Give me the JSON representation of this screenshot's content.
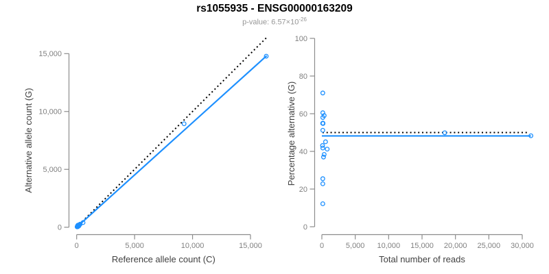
{
  "header": {
    "title": "rs1055935 - ENSG00000163209",
    "subtitle_prefix": "p-value: 6.57×10",
    "subtitle_exponent": "-26"
  },
  "colors": {
    "accent_blue": "#1E90FF",
    "dotted_black": "#000000",
    "axis_gray": "#8C8C8C",
    "tick_label_gray": "#808080",
    "axis_title_dark": "#404040",
    "subtitle_gray": "#969696"
  },
  "chart_data": [
    {
      "id": "allele-count-scatter",
      "type": "scatter",
      "xlabel": "Reference allele count (C)",
      "ylabel": "Alternative allele count (G)",
      "xlim": [
        0,
        15000
      ],
      "ylim": [
        0,
        15000
      ],
      "x_ticks": [
        0,
        5000,
        10000,
        15000
      ],
      "x_tick_labels": [
        "0",
        "5,000",
        "10,000",
        "15,000"
      ],
      "y_ticks": [
        0,
        5000,
        10000,
        15000
      ],
      "y_tick_labels": [
        "0",
        "5,000",
        "10,000",
        "15,000"
      ],
      "grid": false,
      "legend": false,
      "lines": [
        {
          "name": "identity-dotted-line",
          "style": "dotted",
          "color_key": "dotted_black",
          "from": [
            0,
            0
          ],
          "to": [
            16500,
            16500
          ]
        },
        {
          "name": "fit-line",
          "style": "solid",
          "color_key": "accent_blue",
          "from": [
            0,
            0
          ],
          "to": [
            16400,
            14820
          ]
        }
      ],
      "points": [
        [
          40,
          30
        ],
        [
          70,
          60
        ],
        [
          100,
          90
        ],
        [
          130,
          120
        ],
        [
          160,
          145
        ],
        [
          60,
          100
        ],
        [
          90,
          40
        ],
        [
          120,
          70
        ],
        [
          150,
          100
        ],
        [
          190,
          160
        ],
        [
          220,
          190
        ],
        [
          260,
          230
        ],
        [
          300,
          265
        ],
        [
          110,
          180
        ],
        [
          200,
          120
        ],
        [
          550,
          400
        ],
        [
          9270,
          8940
        ],
        [
          16360,
          14780
        ]
      ]
    },
    {
      "id": "percentage-alternative-scatter",
      "type": "scatter",
      "xlabel": "Total number of reads",
      "ylabel": "Percentage alternative (G)",
      "xlim": [
        0,
        30000
      ],
      "ylim": [
        0,
        100
      ],
      "x_ticks": [
        0,
        5000,
        10000,
        15000,
        20000,
        25000,
        30000
      ],
      "x_tick_labels": [
        "0",
        "5,000",
        "10,000",
        "15,000",
        "20,000",
        "25,000",
        "30,000"
      ],
      "y_ticks": [
        0,
        20,
        40,
        60,
        80,
        100
      ],
      "y_tick_labels": [
        "0",
        "20",
        "40",
        "60",
        "80",
        "100"
      ],
      "grid": false,
      "legend": false,
      "lines": [
        {
          "name": "null-dotted-line",
          "style": "dotted",
          "color_key": "dotted_black",
          "from": [
            100,
            50
          ],
          "to": [
            30700,
            50
          ]
        },
        {
          "name": "fit-line",
          "style": "solid",
          "color_key": "accent_blue",
          "from": [
            0,
            48.2
          ],
          "to": [
            31300,
            48.2
          ]
        }
      ],
      "points": [
        [
          140,
          71
        ],
        [
          140,
          60.5
        ],
        [
          350,
          59
        ],
        [
          140,
          58
        ],
        [
          120,
          54.9
        ],
        [
          160,
          55
        ],
        [
          180,
          54.8
        ],
        [
          140,
          51.2
        ],
        [
          550,
          45.1
        ],
        [
          100,
          43.1
        ],
        [
          140,
          41.8
        ],
        [
          800,
          41.2
        ],
        [
          350,
          38.4
        ],
        [
          250,
          37
        ],
        [
          140,
          25.5
        ],
        [
          140,
          22.8
        ],
        [
          140,
          12.2
        ],
        [
          18400,
          49.9
        ],
        [
          31300,
          48.3
        ]
      ]
    }
  ]
}
